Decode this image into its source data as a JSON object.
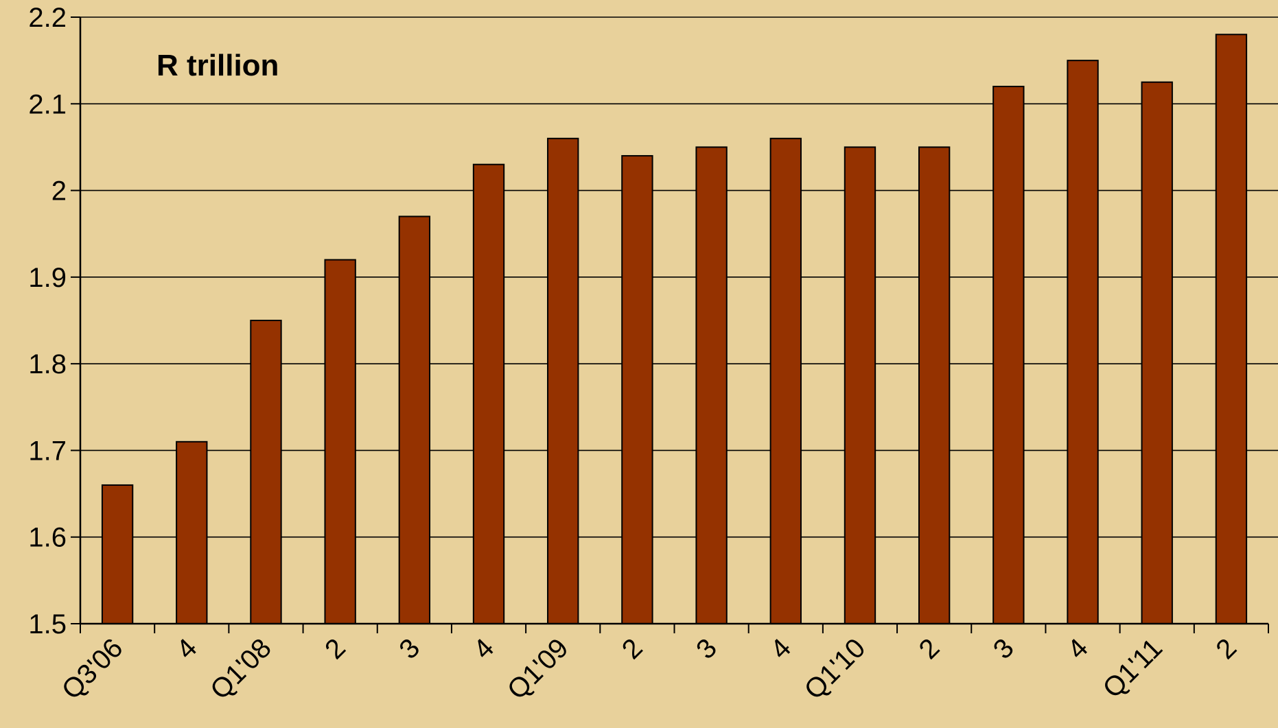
{
  "chart_data": {
    "type": "bar",
    "title": "R trillion",
    "xlabel": "",
    "ylabel": "",
    "categories": [
      "Q3'06",
      "4",
      "Q1'08",
      "2",
      "3",
      "4",
      "Q1'09",
      "2",
      "3",
      "4",
      "Q1'10",
      "2",
      "3",
      "4",
      "Q1'11",
      "2"
    ],
    "values": [
      1.66,
      1.71,
      1.85,
      1.92,
      1.97,
      2.03,
      2.06,
      2.04,
      2.05,
      2.06,
      2.05,
      2.05,
      2.12,
      2.15,
      2.125,
      2.18
    ],
    "ylim": [
      1.5,
      2.2
    ],
    "yticks": [
      "1.5",
      "1.6",
      "1.7",
      "1.8",
      "1.9",
      "2",
      "2.1",
      "2.2"
    ],
    "grid": true,
    "legend": "none",
    "colors": {
      "background": "#e8d19b",
      "bar": "#953200",
      "bar_stroke": "#000000",
      "grid": "#000000"
    }
  }
}
